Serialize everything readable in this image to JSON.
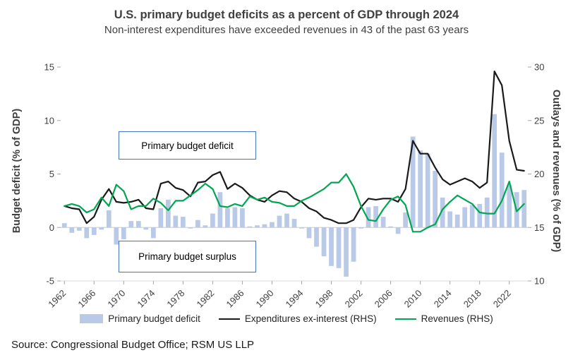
{
  "header": {
    "title": "U.S. primary budget deficits as a percent of GDP through 2024",
    "subtitle": "Non-interest expenditures have exceeded revenues in 43 of the past 63 years"
  },
  "chart_data": {
    "type": "combo-bar-line",
    "x": [
      1962,
      1963,
      1964,
      1965,
      1966,
      1967,
      1968,
      1969,
      1970,
      1971,
      1972,
      1973,
      1974,
      1975,
      1976,
      1977,
      1978,
      1979,
      1980,
      1981,
      1982,
      1983,
      1984,
      1985,
      1986,
      1987,
      1988,
      1989,
      1990,
      1991,
      1992,
      1993,
      1994,
      1995,
      1996,
      1997,
      1998,
      1999,
      2000,
      2001,
      2002,
      2003,
      2004,
      2005,
      2006,
      2007,
      2008,
      2009,
      2010,
      2011,
      2012,
      2013,
      2014,
      2015,
      2016,
      2017,
      2018,
      2019,
      2020,
      2021,
      2022,
      2023,
      2024
    ],
    "series": [
      {
        "name": "Primary budget deficit",
        "type": "bar",
        "axis": "left",
        "color": "#b9c9e8",
        "values": [
          0.4,
          -0.5,
          -0.3,
          -1.0,
          -0.7,
          -0.2,
          1.6,
          -1.6,
          -1.1,
          0.6,
          0.6,
          -0.2,
          -1.0,
          1.8,
          2.6,
          1.1,
          1.0,
          -0.1,
          0.7,
          0.2,
          1.3,
          3.3,
          1.8,
          1.9,
          1.8,
          0.1,
          0.2,
          0.3,
          0.5,
          1.1,
          1.3,
          0.8,
          -0.1,
          -1.0,
          -1.8,
          -2.7,
          -3.6,
          -3.8,
          -4.6,
          -3.2,
          -0.1,
          1.9,
          2.0,
          1.0,
          0.1,
          -0.6,
          1.4,
          8.5,
          7.2,
          6.9,
          5.3,
          2.8,
          1.5,
          1.2,
          1.9,
          2.1,
          2.2,
          2.8,
          10.6,
          7.0,
          4.0,
          3.3,
          3.5
        ]
      },
      {
        "name": "Expenditures ex-interest (RHS)",
        "type": "line",
        "axis": "right",
        "color": "#1a1a1a",
        "values": [
          17.0,
          16.8,
          16.7,
          15.4,
          16.0,
          17.6,
          18.6,
          17.4,
          17.3,
          17.4,
          17.6,
          16.8,
          16.7,
          19.1,
          19.3,
          18.7,
          18.5,
          17.9,
          19.2,
          19.3,
          19.9,
          20.2,
          18.6,
          19.1,
          18.7,
          18.0,
          17.6,
          17.4,
          18.0,
          18.4,
          18.3,
          17.7,
          17.4,
          16.8,
          16.5,
          15.9,
          15.7,
          15.4,
          15.4,
          15.7,
          16.9,
          17.7,
          17.6,
          17.7,
          17.7,
          17.4,
          18.6,
          23.1,
          21.9,
          21.9,
          20.6,
          19.5,
          19.0,
          19.3,
          19.6,
          19.3,
          18.7,
          19.2,
          29.6,
          28.3,
          23.1,
          20.4,
          20.3
        ]
      },
      {
        "name": "Revenues (RHS)",
        "type": "line",
        "axis": "right",
        "color": "#00a651",
        "values": [
          17.0,
          17.2,
          17.0,
          16.4,
          16.7,
          17.8,
          17.0,
          19.0,
          18.4,
          16.7,
          17.0,
          17.0,
          17.7,
          17.3,
          16.6,
          17.5,
          17.5,
          18.0,
          18.5,
          19.1,
          18.6,
          17.0,
          16.9,
          17.2,
          17.0,
          17.9,
          17.6,
          17.8,
          17.4,
          17.3,
          17.0,
          17.0,
          17.5,
          17.8,
          18.2,
          18.6,
          19.2,
          19.2,
          20.0,
          18.8,
          17.0,
          15.7,
          15.6,
          16.7,
          17.6,
          17.9,
          17.1,
          14.6,
          14.6,
          15.0,
          15.3,
          16.7,
          17.4,
          18.0,
          17.6,
          17.2,
          16.4,
          16.3,
          16.3,
          17.5,
          19.3,
          16.5,
          17.2
        ]
      }
    ],
    "left_axis": {
      "label": "Budget deficit (% of GDP)",
      "min": -5,
      "max": 15,
      "ticks": [
        15,
        10,
        5,
        0,
        -5
      ]
    },
    "right_axis": {
      "label": "Outlays and revenues (% of GDP)",
      "min": 10,
      "max": 30,
      "ticks": [
        30,
        25,
        20,
        15,
        10
      ]
    },
    "x_ticks": [
      1962,
      1966,
      1970,
      1974,
      1978,
      1982,
      1986,
      1990,
      1994,
      1998,
      2002,
      2006,
      2010,
      2014,
      2018,
      2022
    ],
    "grid": "zero-line-only",
    "legend_position": "bottom"
  },
  "annotations": {
    "deficit_box": "Primary budget deficit",
    "surplus_box": "Primary budget surplus"
  },
  "source": "Source: Congressional Budget Office; RSM US LLP",
  "colors": {
    "bar": "#b9c9e8",
    "expenditures_line": "#1a1a1a",
    "revenues_line": "#00a651",
    "annotation_border": "#4472c4",
    "axis_text": "#404040"
  }
}
